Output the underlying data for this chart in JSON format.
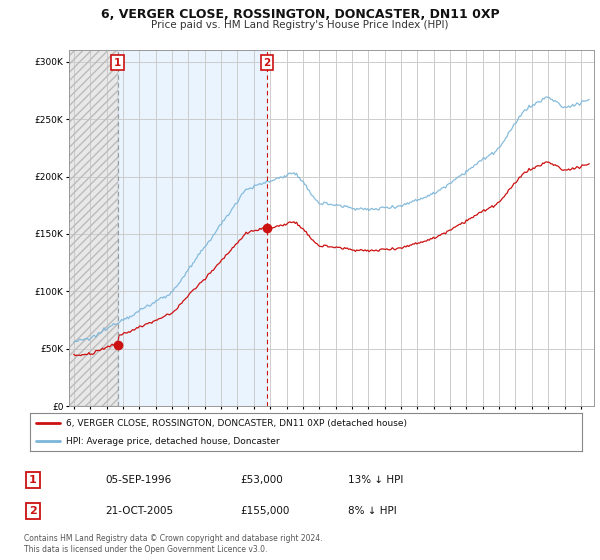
{
  "title": "6, VERGER CLOSE, ROSSINGTON, DONCASTER, DN11 0XP",
  "subtitle": "Price paid vs. HM Land Registry's House Price Index (HPI)",
  "legend_line1": "6, VERGER CLOSE, ROSSINGTON, DONCASTER, DN11 0XP (detached house)",
  "legend_line2": "HPI: Average price, detached house, Doncaster",
  "transaction1_date": "05-SEP-1996",
  "transaction1_price": "£53,000",
  "transaction1_hpi": "13% ↓ HPI",
  "transaction1_year": 1996.67,
  "transaction1_value": 53000,
  "transaction2_date": "21-OCT-2005",
  "transaction2_price": "£155,000",
  "transaction2_hpi": "8% ↓ HPI",
  "transaction2_year": 2005.79,
  "transaction2_value": 155000,
  "footnote": "Contains HM Land Registry data © Crown copyright and database right 2024.\nThis data is licensed under the Open Government Licence v3.0.",
  "ylim": [
    0,
    310000
  ],
  "yticks": [
    0,
    50000,
    100000,
    150000,
    200000,
    250000,
    300000
  ],
  "hpi_color": "#7ab5d8",
  "price_color": "#cc1111",
  "grid_color": "#cccccc",
  "hatch_color": "#aaaaaa",
  "mid_fill_color": "#ddeeff",
  "box_edge_color": "#cc1111",
  "xmin": 1993.7,
  "xmax": 2025.8
}
